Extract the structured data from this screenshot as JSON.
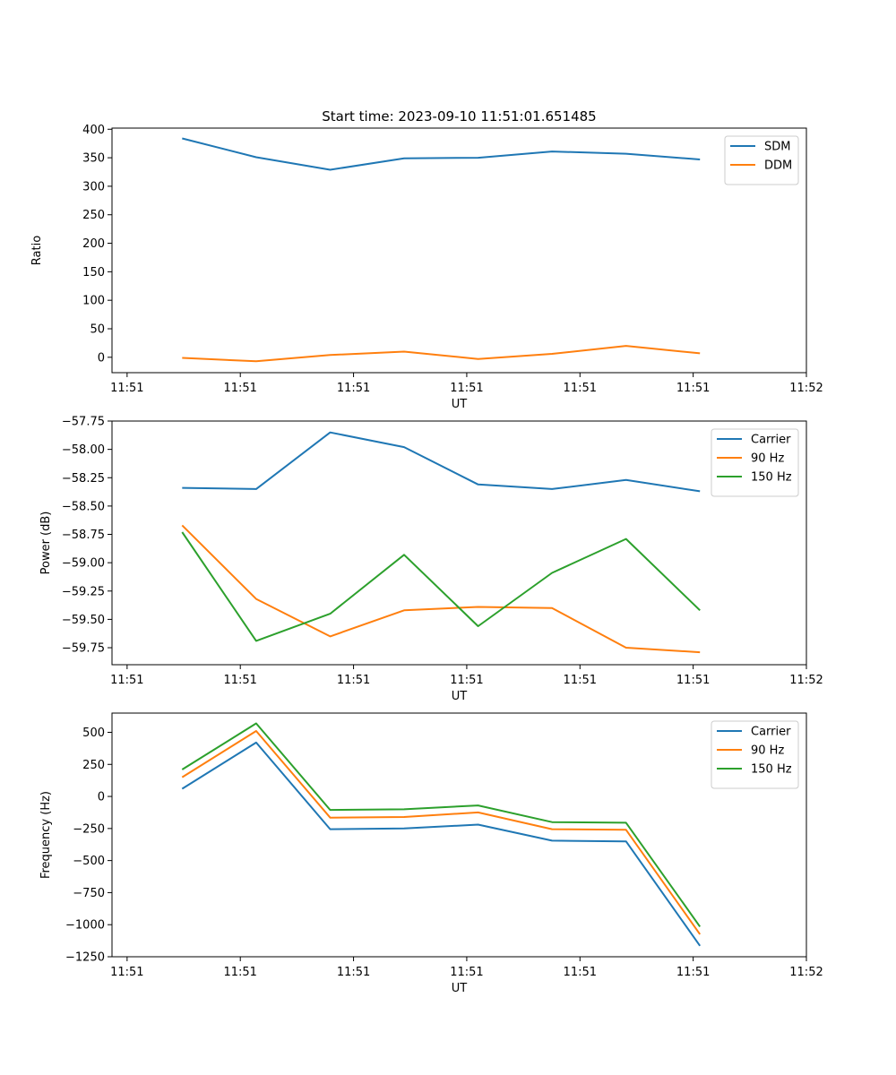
{
  "chart_data": [
    {
      "type": "line",
      "title": "Start time: 2023-09-10 11:51:01.651485",
      "xlabel": "UT",
      "ylabel": "Ratio",
      "xlim": [
        -0.2,
        9.0
      ],
      "ylim": [
        -27,
        402
      ],
      "x_tick_labels": [
        "11:51",
        "11:51",
        "11:51",
        "11:51",
        "11:51",
        "11:51",
        "11:52"
      ],
      "y_ticks": [
        0,
        50,
        100,
        150,
        200,
        250,
        300,
        350,
        400
      ],
      "y_tick_labels": [
        "0",
        "50",
        "100",
        "150",
        "200",
        "250",
        "300",
        "350",
        "400"
      ],
      "legend": "top-right",
      "x": [
        0.73,
        1.71,
        2.69,
        3.67,
        4.65,
        5.63,
        6.61,
        7.59
      ],
      "series": [
        {
          "name": "SDM",
          "color": "#1f77b4",
          "values": [
            384,
            351,
            329,
            349,
            350,
            361,
            357,
            347
          ]
        },
        {
          "name": "DDM",
          "color": "#ff7f0e",
          "values": [
            -1,
            -7,
            4,
            10,
            -3,
            6,
            20,
            7
          ]
        }
      ]
    },
    {
      "type": "line",
      "title": "",
      "xlabel": "UT",
      "ylabel": "Power (dB)",
      "xlim": [
        -0.2,
        9.0
      ],
      "ylim": [
        -59.9,
        -57.75
      ],
      "x_tick_labels": [
        "11:51",
        "11:51",
        "11:51",
        "11:51",
        "11:51",
        "11:51",
        "11:52"
      ],
      "y_ticks": [
        -59.75,
        -59.5,
        -59.25,
        -59.0,
        -58.75,
        -58.5,
        -58.25,
        -58.0,
        -57.75
      ],
      "y_tick_labels": [
        "−59.75",
        "−59.50",
        "−59.25",
        "−59.00",
        "−58.75",
        "−58.50",
        "−58.25",
        "−58.00",
        "−57.75"
      ],
      "legend": "top-right",
      "x": [
        0.73,
        1.71,
        2.69,
        3.67,
        4.65,
        5.63,
        6.61,
        7.59
      ],
      "series": [
        {
          "name": "Carrier",
          "color": "#1f77b4",
          "values": [
            -58.34,
            -58.35,
            -57.85,
            -57.98,
            -58.31,
            -58.35,
            -58.27,
            -58.37
          ]
        },
        {
          "name": "90 Hz",
          "color": "#ff7f0e",
          "values": [
            -58.67,
            -59.32,
            -59.65,
            -59.42,
            -59.39,
            -59.4,
            -59.75,
            -59.79
          ]
        },
        {
          "name": "150 Hz",
          "color": "#2ca02c",
          "values": [
            -58.73,
            -59.69,
            -59.45,
            -58.93,
            -59.56,
            -59.09,
            -58.79,
            -59.42
          ]
        }
      ]
    },
    {
      "type": "line",
      "title": "",
      "xlabel": "UT",
      "ylabel": "Frequency (Hz)",
      "xlim": [
        -0.2,
        9.0
      ],
      "ylim": [
        -1250,
        650
      ],
      "x_tick_labels": [
        "11:51",
        "11:51",
        "11:51",
        "11:51",
        "11:51",
        "11:51",
        "11:52"
      ],
      "y_ticks": [
        -1250,
        -1000,
        -750,
        -500,
        -250,
        0,
        250,
        500
      ],
      "y_tick_labels": [
        "−1250",
        "−1000",
        "−750",
        "−500",
        "−250",
        "0",
        "250",
        "500"
      ],
      "legend": "top-right",
      "x": [
        0.73,
        1.71,
        2.69,
        3.67,
        4.65,
        5.63,
        6.61,
        7.59
      ],
      "series": [
        {
          "name": "Carrier",
          "color": "#1f77b4",
          "values": [
            60,
            420,
            -255,
            -250,
            -220,
            -345,
            -350,
            -1165
          ]
        },
        {
          "name": "90 Hz",
          "color": "#ff7f0e",
          "values": [
            150,
            510,
            -165,
            -160,
            -125,
            -255,
            -260,
            -1075
          ]
        },
        {
          "name": "150 Hz",
          "color": "#2ca02c",
          "values": [
            210,
            570,
            -105,
            -100,
            -70,
            -200,
            -205,
            -1015
          ]
        }
      ]
    }
  ]
}
